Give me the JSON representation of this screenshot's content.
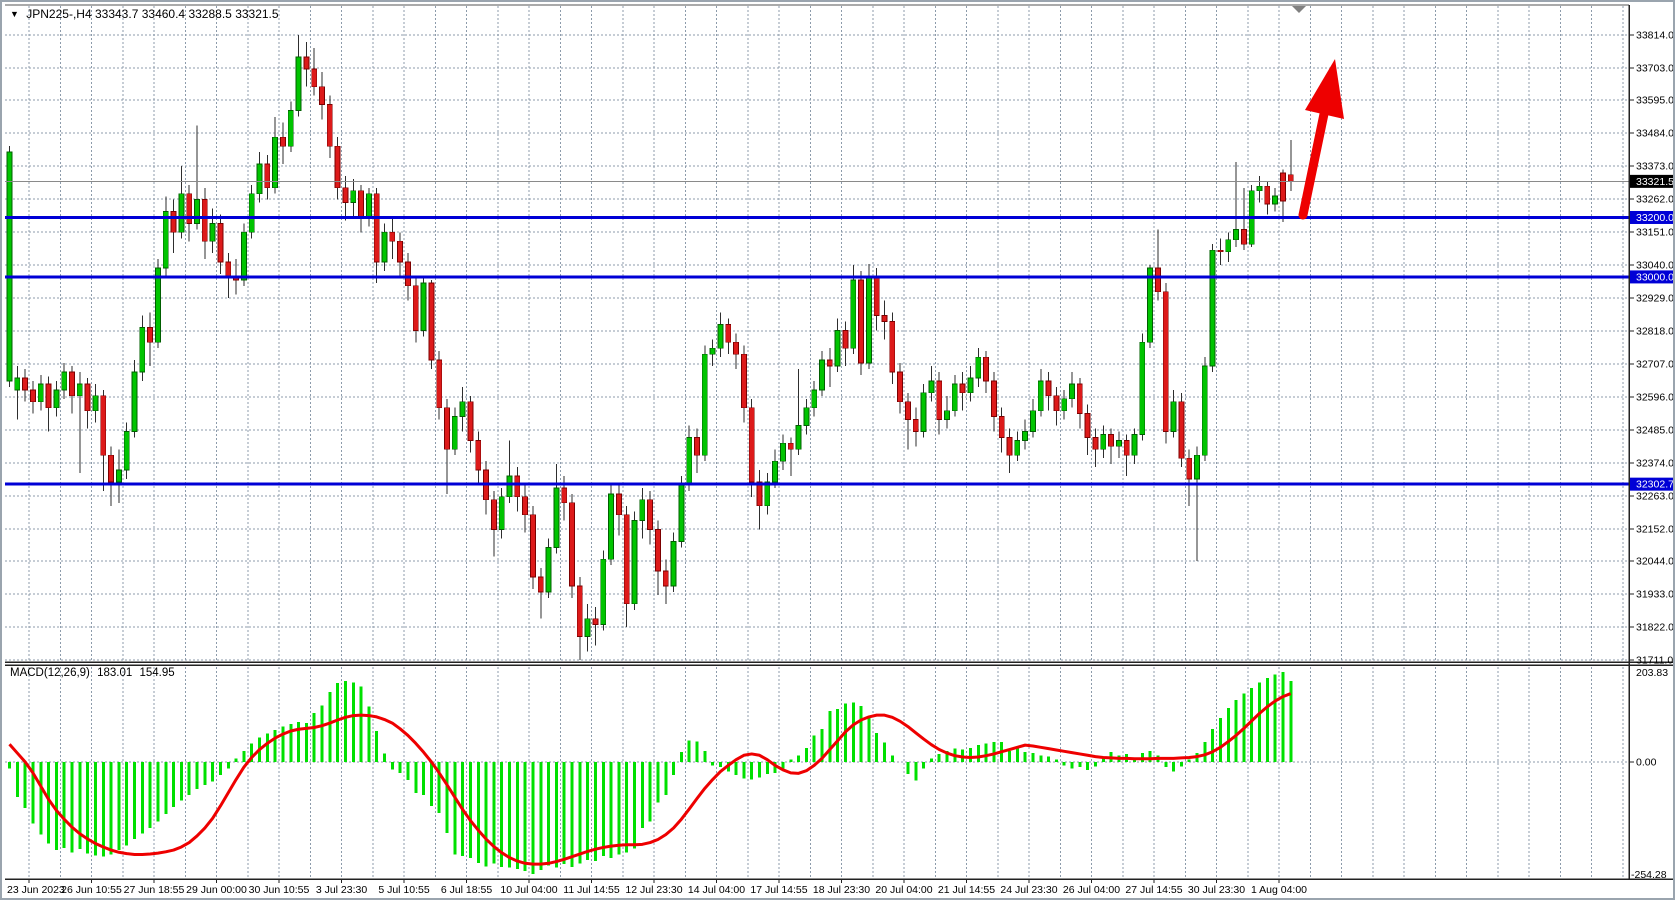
{
  "title": {
    "symbol": "JPN225-,H4",
    "open": "33343.7",
    "high": "33460.4",
    "low": "33288.5",
    "close": "33321.5"
  },
  "icons": {
    "dropdown": "▼"
  },
  "price_axis": {
    "ticks": [
      33814.0,
      33703.0,
      33595.0,
      33484.0,
      33373.0,
      33262.0,
      33151.0,
      33040.0,
      32929.0,
      32818.0,
      32707.0,
      32596.0,
      32485.0,
      32374.0,
      32263.0,
      32152.0,
      32044.0,
      31933.0,
      31822.0,
      31711.0
    ],
    "current_price": {
      "label": "33321.5",
      "value": 33321.5
    },
    "min": 31711.0,
    "max": 33814.0
  },
  "hlines": [
    {
      "label": "33200.0",
      "value": 33200.0
    },
    {
      "label": "33000.0",
      "value": 33000.0
    },
    {
      "label": "32302.7",
      "value": 32302.7
    }
  ],
  "time_axis": {
    "ticks": [
      "23 Jun 2023",
      "26 Jun 10:55",
      "27 Jun 18:55",
      "29 Jun 00:00",
      "30 Jun 10:55",
      "3 Jul 23:30",
      "5 Jul 10:55",
      "6 Jul 18:55",
      "10 Jul 04:00",
      "11 Jul 14:55",
      "12 Jul 23:30",
      "14 Jul 04:00",
      "17 Jul 14:55",
      "18 Jul 23:30",
      "20 Jul 04:00",
      "21 Jul 14:55",
      "24 Jul 23:30",
      "26 Jul 04:00",
      "27 Jul 14:55",
      "30 Jul 23:30",
      "1 Aug 04:00"
    ]
  },
  "macd_panel": {
    "name": "MACD(12,26,9)",
    "main_value": "183.01",
    "signal_value": "154.95",
    "scale_max": "203.83",
    "scale_zero": "0.00",
    "scale_min": "-254.28"
  },
  "annotations": {
    "trend_arrow": {
      "direction": "up",
      "color": "#ee0000",
      "from_price": 33210.0,
      "to_price": 33740.0
    },
    "bar_shift_marker": true
  },
  "colors": {
    "background": "#ffffff",
    "grid": "#8c9bab",
    "bull_body": "#00c400",
    "bull_border": "#005f00",
    "bear_body": "#dd1a1a",
    "bear_border": "#7c0000",
    "wick": "#2e2e2e",
    "hline_blue": "#0000d6",
    "current_price_line": "#8a8a8a",
    "current_tag_bg": "#000000",
    "macd_hist": "#00e000",
    "macd_signal": "#ee0000",
    "axis_text": "#000000",
    "right_edge_strip": "#efd800"
  },
  "chart_data": {
    "type": "candlestick",
    "symbol": "JPN225-",
    "timeframe": "H4",
    "title": "JPN225-,H4  33343.7 33460.4 33288.5 33321.5",
    "price_range": [
      31711.0,
      33814.0
    ],
    "macd_range": [
      -254.28,
      203.83
    ],
    "legend": [
      "MACD(12,26,9) main histogram",
      "MACD signal line"
    ],
    "candles": [
      [
        32650,
        33440,
        32630,
        33420
      ],
      [
        32620,
        32700,
        32520,
        32660
      ],
      [
        32660,
        32690,
        32580,
        32620
      ],
      [
        32620,
        32650,
        32540,
        32580
      ],
      [
        32580,
        32670,
        32550,
        32640
      ],
      [
        32640,
        32665,
        32480,
        32560
      ],
      [
        32560,
        32650,
        32530,
        32620
      ],
      [
        32620,
        32710,
        32590,
        32680
      ],
      [
        32680,
        32700,
        32540,
        32600
      ],
      [
        32600,
        32680,
        32340,
        32640
      ],
      [
        32640,
        32660,
        32490,
        32550
      ],
      [
        32550,
        32640,
        32510,
        32600
      ],
      [
        32600,
        32620,
        32280,
        32400
      ],
      [
        32400,
        32430,
        32230,
        32310
      ],
      [
        32310,
        32420,
        32240,
        32350
      ],
      [
        32350,
        32510,
        32320,
        32480
      ],
      [
        32480,
        32720,
        32460,
        32680
      ],
      [
        32680,
        32870,
        32650,
        32830
      ],
      [
        32830,
        32880,
        32700,
        32780
      ],
      [
        32780,
        33060,
        32760,
        33030
      ],
      [
        33030,
        33270,
        33000,
        33220
      ],
      [
        33220,
        33260,
        33080,
        33150
      ],
      [
        33150,
        33373,
        33130,
        33280
      ],
      [
        33280,
        33310,
        33120,
        33180
      ],
      [
        33180,
        33510,
        33160,
        33260
      ],
      [
        33260,
        33300,
        33060,
        33120
      ],
      [
        33120,
        33230,
        33080,
        33180
      ],
      [
        33180,
        33210,
        33010,
        33050
      ],
      [
        33050,
        33080,
        32929,
        33000
      ],
      [
        33000,
        33060,
        32940,
        32990
      ],
      [
        32990,
        33180,
        32970,
        33150
      ],
      [
        33150,
        33310,
        33130,
        33280
      ],
      [
        33280,
        33420,
        33250,
        33380
      ],
      [
        33380,
        33410,
        33260,
        33300
      ],
      [
        33300,
        33538,
        33280,
        33470
      ],
      [
        33470,
        33520,
        33380,
        33440
      ],
      [
        33440,
        33590,
        33420,
        33560
      ],
      [
        33560,
        33814,
        33540,
        33740
      ],
      [
        33740,
        33790,
        33640,
        33700
      ],
      [
        33700,
        33770,
        33610,
        33640
      ],
      [
        33640,
        33690,
        33530,
        33580
      ],
      [
        33580,
        33610,
        33400,
        33440
      ],
      [
        33440,
        33470,
        33260,
        33300
      ],
      [
        33300,
        33340,
        33190,
        33250
      ],
      [
        33250,
        33330,
        33200,
        33290
      ],
      [
        33290,
        33310,
        33150,
        33200
      ],
      [
        33200,
        33300,
        33170,
        33280
      ],
      [
        33280,
        33300,
        32980,
        33050
      ],
      [
        33050,
        33180,
        33020,
        33150
      ],
      [
        33150,
        33200,
        33060,
        33120
      ],
      [
        33120,
        33150,
        33000,
        33050
      ],
      [
        33050,
        33080,
        32920,
        32970
      ],
      [
        32970,
        33000,
        32780,
        32820
      ],
      [
        32820,
        33000,
        32800,
        32980
      ],
      [
        32980,
        32990,
        32690,
        32720
      ],
      [
        32720,
        32750,
        32520,
        32560
      ],
      [
        32560,
        32590,
        32270,
        32420
      ],
      [
        32420,
        32560,
        32400,
        32530
      ],
      [
        32530,
        32630,
        32480,
        32580
      ],
      [
        32580,
        32600,
        32410,
        32450
      ],
      [
        32450,
        32480,
        32300,
        32350
      ],
      [
        32350,
        32380,
        32200,
        32250
      ],
      [
        32250,
        32280,
        32060,
        32150
      ],
      [
        32150,
        32290,
        32120,
        32260
      ],
      [
        32260,
        32450,
        32240,
        32330
      ],
      [
        32330,
        32360,
        32210,
        32260
      ],
      [
        32260,
        32300,
        32140,
        32200
      ],
      [
        32200,
        32230,
        31950,
        31990
      ],
      [
        31990,
        32020,
        31850,
        31940
      ],
      [
        31940,
        32120,
        31920,
        32090
      ],
      [
        32090,
        32370,
        32070,
        32290
      ],
      [
        32290,
        32330,
        32180,
        32240
      ],
      [
        32240,
        32270,
        31920,
        31960
      ],
      [
        31960,
        31990,
        31711,
        31790
      ],
      [
        31790,
        31900,
        31740,
        31850
      ],
      [
        31850,
        31890,
        31760,
        31830
      ],
      [
        31830,
        32080,
        31810,
        32050
      ],
      [
        32050,
        32300,
        32030,
        32270
      ],
      [
        32270,
        32300,
        32130,
        32200
      ],
      [
        32200,
        32230,
        31822,
        31900
      ],
      [
        31900,
        32210,
        31880,
        32180
      ],
      [
        32180,
        32290,
        32120,
        32250
      ],
      [
        32250,
        32280,
        32100,
        32150
      ],
      [
        32150,
        32180,
        31930,
        32010
      ],
      [
        32010,
        32050,
        31900,
        31960
      ],
      [
        31960,
        32140,
        31940,
        32110
      ],
      [
        32110,
        32330,
        32090,
        32300
      ],
      [
        32300,
        32500,
        32280,
        32460
      ],
      [
        32460,
        32490,
        32340,
        32400
      ],
      [
        32400,
        32770,
        32380,
        32740
      ],
      [
        32740,
        32790,
        32700,
        32760
      ],
      [
        32760,
        32880,
        32730,
        32840
      ],
      [
        32840,
        32860,
        32740,
        32780
      ],
      [
        32780,
        32810,
        32690,
        32740
      ],
      [
        32740,
        32770,
        32510,
        32560
      ],
      [
        32560,
        32590,
        32260,
        32310
      ],
      [
        32310,
        32350,
        32150,
        32230
      ],
      [
        32230,
        32340,
        32200,
        32310
      ],
      [
        32310,
        32420,
        32290,
        32380
      ],
      [
        32380,
        32470,
        32350,
        32440
      ],
      [
        32440,
        32460,
        32330,
        32420
      ],
      [
        32420,
        32690,
        32400,
        32500
      ],
      [
        32500,
        32590,
        32470,
        32560
      ],
      [
        32560,
        32650,
        32530,
        32620
      ],
      [
        32620,
        32750,
        32600,
        32720
      ],
      [
        32720,
        32760,
        32630,
        32700
      ],
      [
        32700,
        32860,
        32680,
        32820
      ],
      [
        32820,
        32850,
        32700,
        32760
      ],
      [
        32760,
        33040,
        32740,
        32990
      ],
      [
        32990,
        33020,
        32670,
        32710
      ],
      [
        32710,
        33043,
        32690,
        33000
      ],
      [
        33000,
        33030,
        32820,
        32870
      ],
      [
        32870,
        32920,
        32790,
        32850
      ],
      [
        32850,
        32880,
        32640,
        32680
      ],
      [
        32680,
        32710,
        32540,
        32580
      ],
      [
        32580,
        32610,
        32420,
        32520
      ],
      [
        32520,
        32560,
        32430,
        32480
      ],
      [
        32480,
        32640,
        32460,
        32610
      ],
      [
        32610,
        32700,
        32580,
        32650
      ],
      [
        32650,
        32680,
        32470,
        32520
      ],
      [
        32520,
        32600,
        32490,
        32550
      ],
      [
        32550,
        32670,
        32530,
        32640
      ],
      [
        32640,
        32680,
        32550,
        32610
      ],
      [
        32610,
        32700,
        32580,
        32660
      ],
      [
        32660,
        32760,
        32630,
        32730
      ],
      [
        32730,
        32750,
        32610,
        32650
      ],
      [
        32650,
        32680,
        32480,
        32530
      ],
      [
        32530,
        32560,
        32410,
        32460
      ],
      [
        32460,
        32490,
        32340,
        32400
      ],
      [
        32400,
        32480,
        32380,
        32450
      ],
      [
        32450,
        32520,
        32420,
        32480
      ],
      [
        32480,
        32590,
        32460,
        32550
      ],
      [
        32550,
        32690,
        32530,
        32650
      ],
      [
        32650,
        32680,
        32550,
        32600
      ],
      [
        32600,
        32630,
        32500,
        32550
      ],
      [
        32550,
        32620,
        32520,
        32590
      ],
      [
        32590,
        32680,
        32560,
        32640
      ],
      [
        32640,
        32660,
        32490,
        32540
      ],
      [
        32540,
        32570,
        32400,
        32460
      ],
      [
        32460,
        32490,
        32360,
        32420
      ],
      [
        32420,
        32500,
        32390,
        32470
      ],
      [
        32470,
        32490,
        32370,
        32430
      ],
      [
        32430,
        32480,
        32390,
        32450
      ],
      [
        32450,
        32470,
        32330,
        32400
      ],
      [
        32400,
        32490,
        32370,
        32470
      ],
      [
        32470,
        32810,
        32450,
        32780
      ],
      [
        32780,
        33040,
        32760,
        33030
      ],
      [
        33030,
        33160,
        32920,
        32950
      ],
      [
        32950,
        32980,
        32440,
        32480
      ],
      [
        32480,
        32620,
        32460,
        32580
      ],
      [
        32580,
        32610,
        32360,
        32390
      ],
      [
        32390,
        32420,
        32230,
        32320
      ],
      [
        32320,
        32430,
        32044,
        32400
      ],
      [
        32400,
        32730,
        32380,
        32700
      ],
      [
        32700,
        33110,
        32680,
        33090
      ],
      [
        33090,
        33130,
        33040,
        33085
      ],
      [
        33085,
        33150,
        33050,
        33125
      ],
      [
        33125,
        33387,
        33100,
        33160
      ],
      [
        33160,
        33300,
        33090,
        33110
      ],
      [
        33110,
        33310,
        33100,
        33290
      ],
      [
        33290,
        33340,
        33250,
        33305
      ],
      [
        33305,
        33320,
        33210,
        33245
      ],
      [
        33245,
        33300,
        33220,
        33272
      ],
      [
        33350,
        33362,
        33184,
        33255
      ],
      [
        33343.7,
        33460.4,
        33288.5,
        33321.5
      ]
    ],
    "macd_hist": [
      -15,
      -80,
      -105,
      -140,
      -165,
      -185,
      -200,
      -195,
      -205,
      -198,
      -208,
      -212,
      -215,
      -210,
      -200,
      -190,
      -175,
      -162,
      -150,
      -135,
      -118,
      -102,
      -88,
      -75,
      -62,
      -52,
      -44,
      -30,
      -15,
      8,
      25,
      42,
      55,
      64,
      72,
      80,
      86,
      90,
      88,
      111,
      128,
      158,
      179,
      183,
      180,
      171,
      126,
      70,
      19,
      -17,
      -25,
      -41,
      -71,
      -75,
      -100,
      -116,
      -161,
      -210,
      -214,
      -218,
      -229,
      -237,
      -230,
      -238,
      -240,
      -243,
      -247,
      -254.28,
      -245,
      -235,
      -240,
      -232,
      -238,
      -230,
      -222,
      -225,
      -214,
      -218,
      -210,
      -205,
      -196,
      -150,
      -135,
      -92,
      -75,
      -30,
      22,
      48,
      46,
      25,
      -8,
      -12,
      -22,
      -30,
      -38,
      -40,
      -35,
      -28,
      -25,
      -15,
      5,
      15,
      32,
      60,
      75,
      115,
      120,
      132,
      135,
      127,
      100,
      66,
      44,
      15,
      0,
      -27,
      -42,
      -15,
      8,
      18,
      25,
      30,
      28,
      32,
      38,
      42,
      45,
      45,
      25,
      32,
      22,
      20,
      15,
      12,
      5,
      -8,
      -15,
      -12,
      -18,
      -10,
      12,
      22,
      15,
      18,
      10,
      20,
      25,
      15,
      -12,
      -22,
      -10,
      5,
      20,
      45,
      75,
      100,
      122,
      140,
      155,
      168,
      180,
      190,
      198,
      203.83,
      183.01
    ],
    "macd_signal": [
      40,
      20,
      0,
      -25,
      -55,
      -85,
      -110,
      -130,
      -148,
      -163,
      -175,
      -185,
      -193,
      -200,
      -205,
      -208,
      -210,
      -210,
      -209,
      -207,
      -204,
      -200,
      -193,
      -183,
      -168,
      -150,
      -128,
      -100,
      -70,
      -40,
      -12,
      10,
      28,
      42,
      54,
      63,
      70,
      74,
      76,
      78,
      82,
      88,
      95,
      101,
      105,
      106,
      105,
      102,
      96,
      88,
      75,
      60,
      42,
      22,
      0,
      -25,
      -52,
      -80,
      -108,
      -133,
      -155,
      -175,
      -192,
      -206,
      -217,
      -225,
      -230,
      -232,
      -232,
      -230,
      -226,
      -221,
      -215,
      -209,
      -203,
      -198,
      -194,
      -191,
      -189,
      -188,
      -188,
      -187,
      -183,
      -176,
      -165,
      -150,
      -130,
      -107,
      -83,
      -60,
      -40,
      -22,
      -8,
      5,
      15,
      18,
      15,
      5,
      -8,
      -18,
      -25,
      -26,
      -20,
      -8,
      8,
      28,
      48,
      68,
      84,
      95,
      102,
      106,
      106,
      101,
      92,
      80,
      66,
      52,
      39,
      28,
      20,
      14,
      11,
      10,
      11,
      14,
      18,
      23,
      28,
      33,
      38,
      36,
      33,
      30,
      27,
      24,
      21,
      18,
      15,
      12,
      10,
      9,
      8,
      8,
      7,
      7,
      7,
      8,
      8,
      8,
      9,
      10,
      12,
      16,
      23,
      33,
      46,
      60,
      76,
      93,
      110,
      125,
      138,
      148,
      154.95
    ]
  }
}
